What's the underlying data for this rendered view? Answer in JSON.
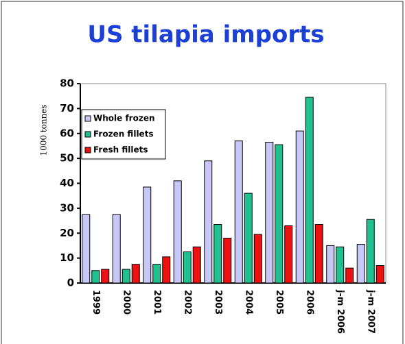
{
  "chart_data": {
    "type": "bar",
    "title": "US tilapia imports",
    "ylabel": "1000 tonnes",
    "categories": [
      "1999",
      "2000",
      "2001",
      "2002",
      "2003",
      "2004",
      "2005",
      "2006",
      "j-m 2006",
      "j-m 2007"
    ],
    "series": [
      {
        "name": "Whole frozen",
        "color": "#c8c8f8",
        "values": [
          27.5,
          27.5,
          38.5,
          41,
          49,
          57,
          56.5,
          61,
          15,
          15.5
        ]
      },
      {
        "name": "Frozen fillets",
        "color": "#20c090",
        "values": [
          5,
          5.5,
          7.5,
          12.5,
          23.5,
          36,
          55.5,
          74.5,
          14.5,
          25.5
        ]
      },
      {
        "name": "Fresh fillets",
        "color": "#ee1111",
        "values": [
          5.5,
          7.5,
          10.5,
          14.5,
          18,
          19.5,
          23,
          23.5,
          6,
          7
        ]
      }
    ],
    "ylim": [
      0,
      80
    ],
    "yticks": [
      0,
      10,
      20,
      30,
      40,
      50,
      60,
      70,
      80
    ],
    "grid": false,
    "legend": "top-left"
  }
}
